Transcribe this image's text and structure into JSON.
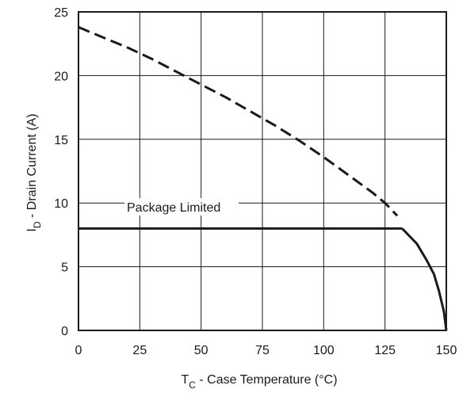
{
  "chart_data": {
    "type": "line",
    "xlabel_main": "T",
    "xlabel_sub": "C",
    "xlabel_rest": " - Case Temperature (°C)",
    "ylabel_main": "I",
    "ylabel_sub": "D",
    "ylabel_rest": " - Drain Current (A)",
    "xlim": [
      0,
      150
    ],
    "ylim": [
      0,
      25
    ],
    "x_ticks": [
      "0",
      "25",
      "50",
      "75",
      "100",
      "125",
      "150"
    ],
    "y_ticks": [
      "0",
      "5",
      "10",
      "15",
      "20",
      "25"
    ],
    "grid": true,
    "annotation": "Package Limited",
    "series": [
      {
        "style": "dashed",
        "x": [
          0,
          10,
          20,
          30,
          40,
          50,
          60,
          70,
          80,
          90,
          100,
          110,
          120,
          125,
          130
        ],
        "y": [
          23.8,
          23.0,
          22.2,
          21.3,
          20.3,
          19.3,
          18.3,
          17.2,
          16.1,
          14.9,
          13.6,
          12.2,
          10.8,
          10.0,
          9.0
        ]
      },
      {
        "style": "solid",
        "x": [
          0,
          132
        ],
        "y": [
          8.0,
          8.0
        ]
      },
      {
        "style": "solid",
        "x": [
          132,
          138,
          142,
          145,
          147,
          149,
          150
        ],
        "y": [
          8.0,
          6.8,
          5.5,
          4.4,
          3.1,
          1.5,
          0
        ]
      }
    ]
  }
}
